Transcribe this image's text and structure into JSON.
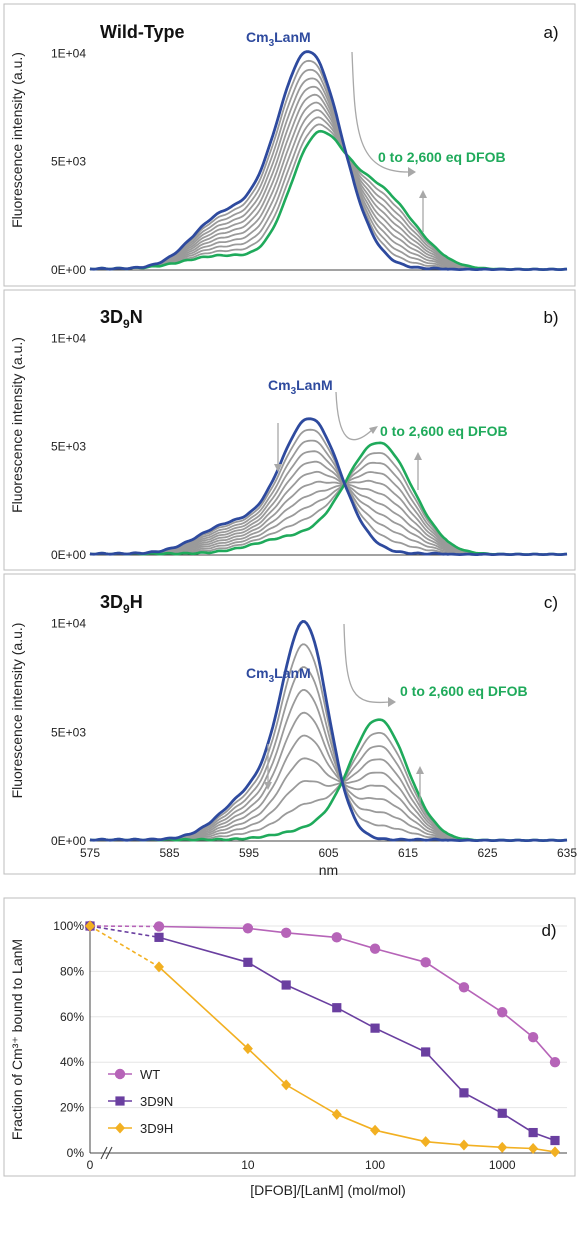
{
  "colors": {
    "cm": "#2e4a9e",
    "dfob": "#1faa5b",
    "titration": "#9a9a9a",
    "arrow": "#a8a8a8",
    "wt": "#b664b8",
    "d9n": "#6a3fa0",
    "d9h": "#f2b022"
  },
  "spectra": {
    "xlabel": "nm",
    "ylabel": "Fluorescence intensity (a.u.)",
    "xticks": [
      "575",
      "585",
      "595",
      "605",
      "615",
      "625",
      "635"
    ],
    "xlim": [
      575,
      635
    ],
    "yticks": [
      "0E+00",
      "5E+03",
      "1E+04"
    ],
    "ylim": [
      0,
      12000
    ],
    "cm_label": "LanM",
    "cm_label_prefix": "Cm",
    "cm_label_sub": "3",
    "dfob_label": "0 to 2,600 eq  DFOB",
    "panels": [
      {
        "letter": "a)",
        "title": "Wild-Type",
        "title_main": "Wild-Type",
        "title_sub": "",
        "title_tail": "",
        "init": {
          "peak": 602.5,
          "amp": 10000,
          "w": 4.2,
          "sh": 591.5,
          "sha": 2300,
          "shw": 3.8
        },
        "fin": {
          "peak": 603.3,
          "amp": 5300,
          "w": 3.4,
          "peak2": 611.0,
          "amp2": 3600,
          "w2": 4.6,
          "sh": 591.5,
          "sha": 600,
          "shw": 4.5
        },
        "n_grey": 9
      },
      {
        "letter": "b)",
        "title": "3D9N",
        "title_main": "3D",
        "title_sub": "9",
        "title_tail": "N",
        "init": {
          "peak": 602.7,
          "amp": 6200,
          "w": 3.8,
          "sh": 592.5,
          "sha": 1300,
          "shw": 4.0
        },
        "fin": {
          "peak": 611.3,
          "amp": 5100,
          "w": 4.2,
          "sh": 600.0,
          "sha": 700,
          "shw": 4.5
        },
        "n_grey": 9
      },
      {
        "letter": "c)",
        "title": "3D9H",
        "title_main": "3D",
        "title_sub": "9",
        "title_tail": "H",
        "init": {
          "peak": 602.1,
          "amp": 9500,
          "w": 2.9,
          "sh": 595.5,
          "sha": 2100,
          "shw": 3.9
        },
        "fin": {
          "peak": 611.3,
          "amp": 5500,
          "w": 3.6,
          "sh": 602.5,
          "sha": 400,
          "shw": 4.0
        },
        "n_grey": 8
      }
    ]
  },
  "chart_data": {
    "type": "line",
    "title": "",
    "panel_letter": "d)",
    "xlabel": "[DFOB]/[LanM] (mol/mol)",
    "ylabel": "Fraction of Cm³⁺ bound to LanM",
    "xscale": "log",
    "xticks": [
      "0",
      "10",
      "100",
      "1000"
    ],
    "yticks": [
      "0%",
      "20%",
      "40%",
      "60%",
      "80%",
      "100%"
    ],
    "ylim": [
      0,
      100
    ],
    "legend_position": "bottom-left",
    "x": [
      0,
      2,
      10,
      20,
      50,
      100,
      250,
      500,
      1000,
      1750,
      2600
    ],
    "series": [
      {
        "name": "WT",
        "marker": "circle",
        "values": [
          100,
          99.8,
          99,
          97,
          95,
          90,
          84,
          73,
          62,
          51,
          40
        ]
      },
      {
        "name": "3D9N",
        "marker": "square",
        "values": [
          100,
          95,
          84,
          74,
          64,
          55,
          44.5,
          26.5,
          17.5,
          9,
          5.5
        ]
      },
      {
        "name": "3D9H",
        "marker": "diamond",
        "values": [
          100,
          82,
          46,
          30,
          17,
          10,
          5,
          3.5,
          2.5,
          2,
          0.5
        ]
      }
    ]
  }
}
